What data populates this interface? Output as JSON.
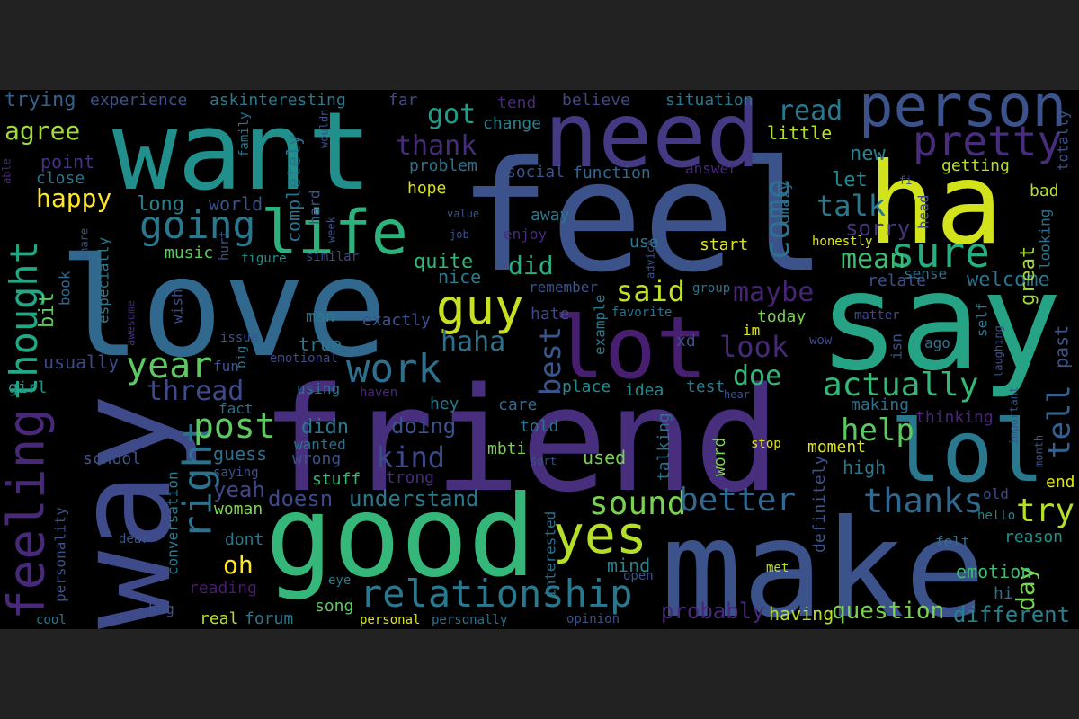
{
  "word_cloud": {
    "words": [
      "feel",
      "love",
      "friend",
      "want",
      "way",
      "good",
      "make",
      "say",
      "ha",
      "need",
      "lot",
      "lol",
      "life",
      "person",
      "feeling",
      "right",
      "thought",
      "guy",
      "yes",
      "relationship",
      "sure",
      "pretty",
      "going",
      "work",
      "year",
      "post",
      "thanks",
      "sound",
      "better",
      "actually",
      "come",
      "best",
      "help",
      "try",
      "tell",
      "maybe",
      "look",
      "doe",
      "mean",
      "said",
      "talk",
      "sorry",
      "kind",
      "thread",
      "thank",
      "read",
      "got",
      "happy",
      "agree",
      "haha",
      "did",
      "question",
      "different",
      "probably",
      "oh",
      "yeah",
      "understand",
      "doesn",
      "day",
      "emotion",
      "welcome",
      "relate",
      "great",
      "trying",
      "experience",
      "askinteresting",
      "far",
      "tend",
      "believe",
      "situation",
      "point",
      "close",
      "long",
      "world",
      "quite",
      "new",
      "let",
      "little",
      "getting",
      "change",
      "problem",
      "hope",
      "social",
      "function",
      "answer",
      "bad",
      "usually",
      "girl",
      "fact",
      "didn",
      "doing",
      "told",
      "care",
      "hey",
      "place",
      "idea",
      "test",
      "making",
      "thinking",
      "moment",
      "high",
      "end",
      "used",
      "stop",
      "word",
      "talking",
      "wrong",
      "stuff",
      "strong",
      "school",
      "wanted",
      "guess",
      "saying",
      "mbti",
      "woman",
      "dont",
      "reading",
      "hug",
      "real",
      "forum",
      "song",
      "personal",
      "personally",
      "opinion",
      "eye",
      "mind",
      "open",
      "met",
      "felt",
      "reason",
      "hello",
      "old",
      "hi",
      "cool",
      "dear",
      "music",
      "book",
      "especially",
      "share",
      "figure",
      "similar",
      "wish",
      "hurt",
      "completely",
      "hard",
      "week",
      "wouldn",
      "family",
      "able",
      "man",
      "nice",
      "exactly",
      "true",
      "using",
      "emotional",
      "issue",
      "big",
      "fun",
      "awesome",
      "haven",
      "hate",
      "remember",
      "example",
      "favorite",
      "xd",
      "im",
      "today",
      "group",
      "wow",
      "isn",
      "ago",
      "matter",
      "self",
      "laughing",
      "important",
      "past",
      "month",
      "honestly",
      "head",
      "sense",
      "looking",
      "totally",
      "fi",
      "start",
      "use",
      "advice",
      "crazy",
      "enjoy",
      "away",
      "value",
      "job",
      "definitely",
      "interested",
      "conversation",
      "personality",
      "sort",
      "hear",
      "having",
      "bit"
    ]
  }
}
